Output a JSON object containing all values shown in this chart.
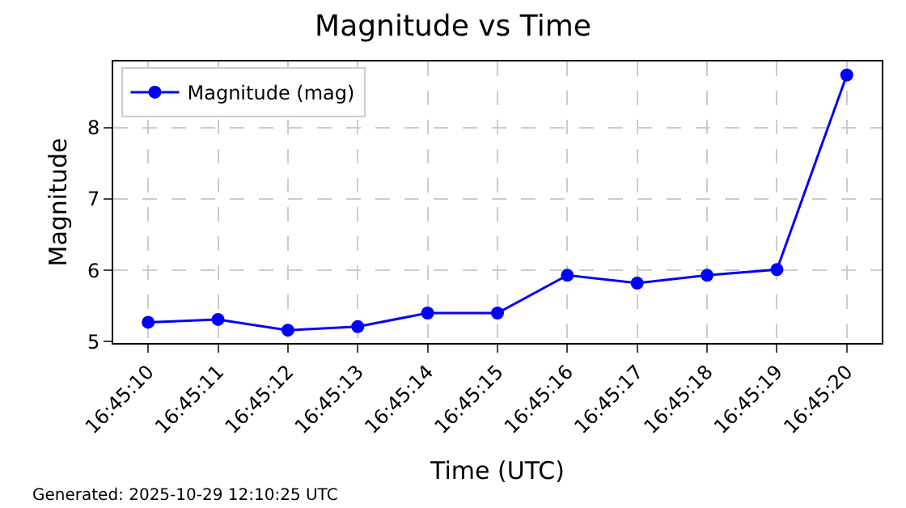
{
  "chart_data": {
    "type": "line",
    "title": "Magnitude vs Time",
    "xlabel": "Time (UTC)",
    "ylabel": "Magnitude",
    "categories": [
      "16:45:10",
      "16:45:11",
      "16:45:12",
      "16:45:13",
      "16:45:14",
      "16:45:15",
      "16:45:16",
      "16:45:17",
      "16:45:18",
      "16:45:19",
      "16:45:20"
    ],
    "series": [
      {
        "name": "Magnitude (mag)",
        "color": "#0000ff",
        "values": [
          5.27,
          5.31,
          5.16,
          5.21,
          5.4,
          5.4,
          5.93,
          5.82,
          5.93,
          6.01,
          8.74
        ]
      }
    ],
    "ylim": [
      4.98,
      8.93
    ],
    "yticks": [
      5,
      6,
      7,
      8
    ],
    "grid": true,
    "legend": "top left",
    "marker": "circle",
    "line_style": "solid",
    "annotations": [
      "Generated: 2025-10-29 12:10:25 UTC"
    ]
  }
}
